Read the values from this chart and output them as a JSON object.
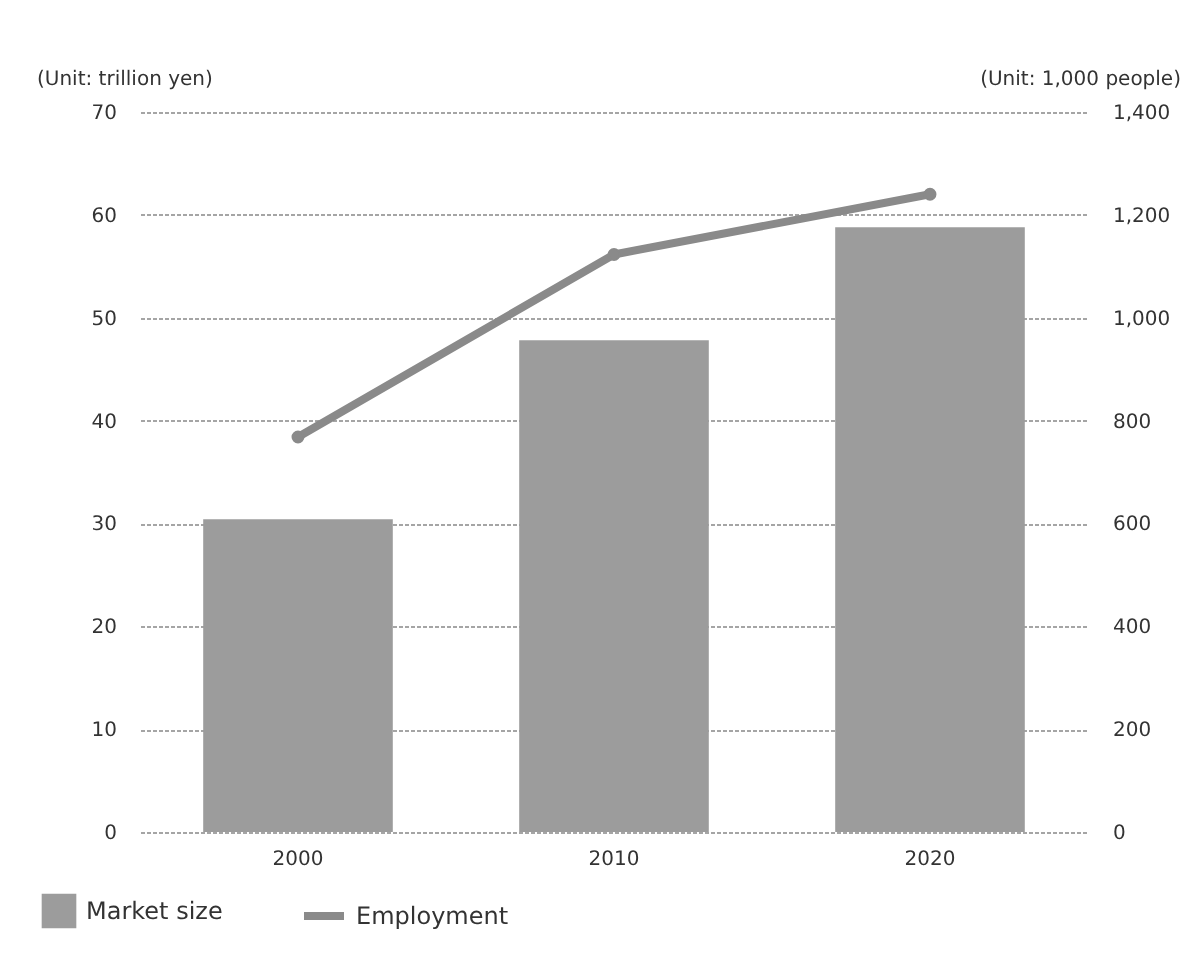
{
  "chart_data": {
    "type": "bar",
    "ylabel": "(Unit: trillion yen)",
    "y2label": "(Unit: 1,000 people)",
    "categories": [
      "2000",
      "2010",
      "2020"
    ],
    "series": [
      {
        "name": "Market size",
        "type": "bar",
        "color": "#9c9c9c",
        "values": [
          30.4,
          47.8,
          58.8
        ]
      },
      {
        "name": "Employment",
        "type": "line",
        "axis": "y2",
        "color": "#8a8a8a",
        "values": [
          768,
          1123,
          1240
        ]
      }
    ],
    "ylim": [
      0,
      70
    ],
    "yticks": [
      0,
      10,
      20,
      30,
      40,
      50,
      60,
      70
    ],
    "y2lim": [
      0,
      1400
    ],
    "y2ticks": [
      0,
      {
        "value": 200,
        "label": "200"
      },
      {
        "value": 400,
        "label": "400"
      },
      {
        "value": 600,
        "label": "600"
      },
      {
        "value": 800,
        "label": "800"
      },
      {
        "value": 1000,
        "label": "1,000"
      },
      {
        "value": 1200,
        "label": "1,200"
      },
      {
        "value": 1400,
        "label": "1,400"
      }
    ],
    "grid": "y",
    "legend": "bottom left",
    "marker": "circle",
    "line_style": "solid"
  }
}
